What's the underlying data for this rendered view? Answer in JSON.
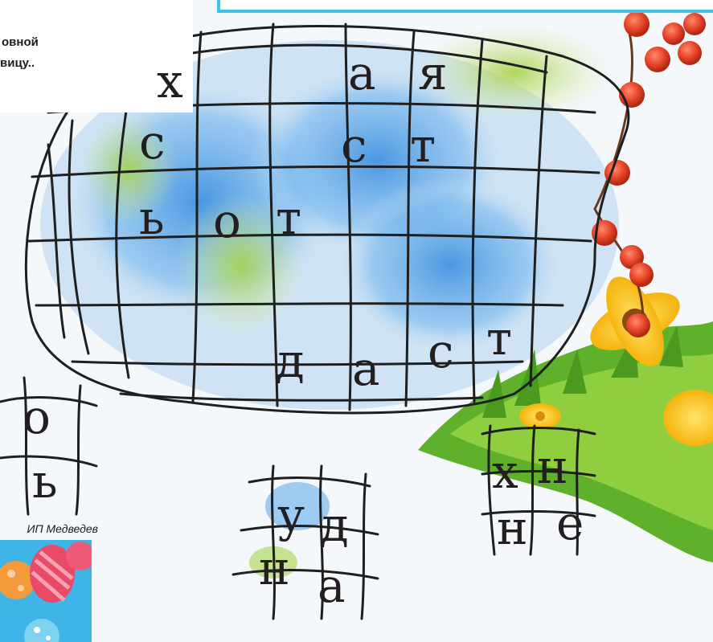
{
  "intro": {
    "line1": "овной",
    "line2": "вицу.."
  },
  "credit": "ИП Медведев",
  "letters": [
    {
      "id": "kh-1",
      "char": "х"
    },
    {
      "id": "a-1",
      "char": "а"
    },
    {
      "id": "ya-1",
      "char": "я"
    },
    {
      "id": "s-1",
      "char": "с"
    },
    {
      "id": "s-2",
      "char": "с"
    },
    {
      "id": "t-1",
      "char": "т"
    },
    {
      "id": "soft-1",
      "char": "ь"
    },
    {
      "id": "o-1",
      "char": "о"
    },
    {
      "id": "t-2",
      "char": "т"
    },
    {
      "id": "d-1",
      "char": "д"
    },
    {
      "id": "a-2",
      "char": "а"
    },
    {
      "id": "s-3",
      "char": "с"
    },
    {
      "id": "t-3",
      "char": "т"
    },
    {
      "id": "o-2",
      "char": "о"
    },
    {
      "id": "soft-2",
      "char": "ь"
    },
    {
      "id": "u-1",
      "char": "у"
    },
    {
      "id": "d-2",
      "char": "д"
    },
    {
      "id": "n-1",
      "char": "н"
    },
    {
      "id": "a-3",
      "char": "а"
    },
    {
      "id": "kh-2",
      "char": "х"
    },
    {
      "id": "n-2",
      "char": "н"
    },
    {
      "id": "n-3",
      "char": "н"
    },
    {
      "id": "e-1",
      "char": "е"
    }
  ],
  "colors": {
    "accent": "#3ec3ea",
    "net": "#1f1f1f",
    "sky_blue": "#4f9fe0",
    "grass": "#69b82c",
    "berry": "#e8452a",
    "flower": "#f7c11a"
  }
}
